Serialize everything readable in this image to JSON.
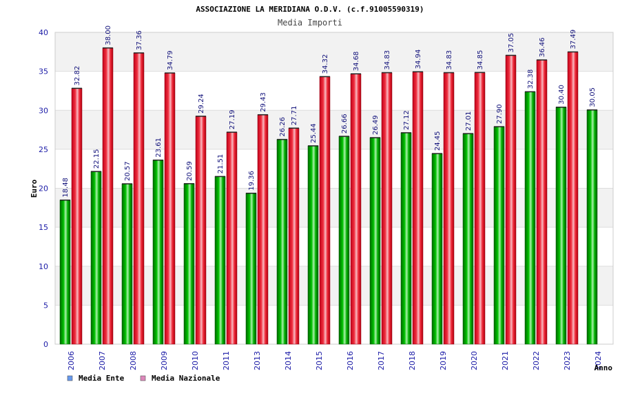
{
  "chart_data": {
    "type": "bar",
    "title": "ASSOCIAZIONE LA MERIDIANA O.D.V. (c.f.91005590319)",
    "subtitle": "Media Importi",
    "xlabel": "Anno",
    "ylabel": "Euro",
    "ylim": [
      0,
      40
    ],
    "yticks": [
      0,
      5,
      10,
      15,
      20,
      25,
      30,
      35,
      40
    ],
    "categories": [
      "2006",
      "2007",
      "2008",
      "2009",
      "2010",
      "2011",
      "2013",
      "2014",
      "2015",
      "2016",
      "2017",
      "2018",
      "2019",
      "2020",
      "2021",
      "2022",
      "2023",
      "2024"
    ],
    "series": [
      {
        "name": "Media Ente",
        "color": "#00a000",
        "legend_color": "#6699ee",
        "values": [
          18.48,
          22.15,
          20.57,
          23.61,
          20.59,
          21.51,
          19.36,
          26.26,
          25.44,
          26.66,
          26.49,
          27.12,
          24.45,
          27.01,
          27.9,
          32.38,
          30.4,
          30.05
        ],
        "labels": [
          "18.48",
          "22.15",
          "20.57",
          "23.61",
          "20.59",
          "21.51",
          "19.36",
          "26.26",
          "25.44",
          "26.66",
          "26.49",
          "27.12",
          "24.45",
          "27.01",
          "27.90",
          "32.38",
          "30.40",
          "30.05"
        ]
      },
      {
        "name": "Media Nazionale",
        "color": "#e8102a",
        "legend_color": "#dd88bb",
        "values": [
          32.82,
          38.0,
          37.36,
          34.79,
          29.24,
          27.19,
          29.43,
          27.71,
          34.32,
          34.68,
          34.83,
          34.94,
          34.83,
          34.85,
          37.05,
          36.46,
          37.49,
          null
        ],
        "labels": [
          "32.82",
          "38.00",
          "37.36",
          "34.79",
          "29.24",
          "27.19",
          "29.43",
          "27.71",
          "34.32",
          "34.68",
          "34.83",
          "34.94",
          "34.83",
          "34.85",
          "37.05",
          "36.46",
          "37.49",
          ""
        ]
      }
    ],
    "grid": true,
    "legend_position": "bottom-left"
  }
}
